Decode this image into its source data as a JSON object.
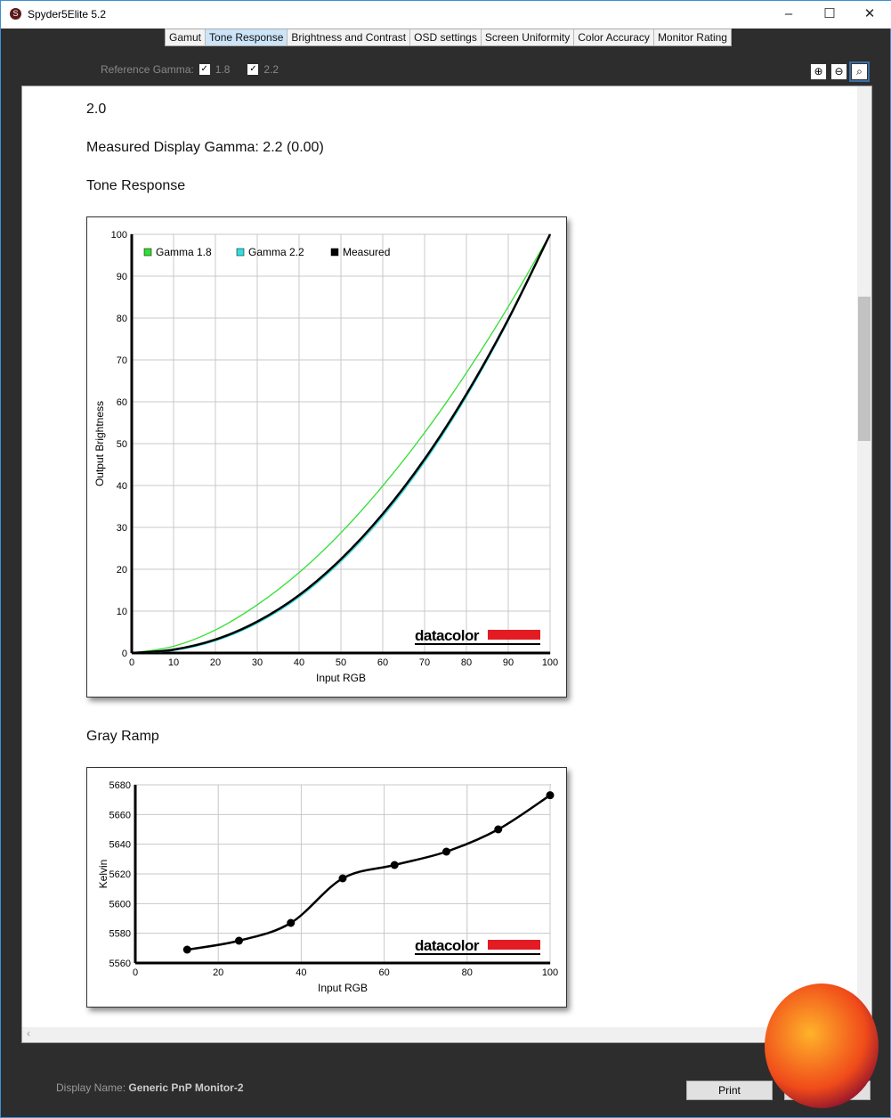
{
  "window": {
    "title": "Spyder5Elite 5.2",
    "minimize": "–",
    "maximize": "☐",
    "close": "✕"
  },
  "tabs": [
    {
      "label": "Gamut"
    },
    {
      "label": "Tone Response",
      "active": true
    },
    {
      "label": "Brightness and Contrast"
    },
    {
      "label": "OSD settings"
    },
    {
      "label": "Screen Uniformity"
    },
    {
      "label": "Color Accuracy"
    },
    {
      "label": "Monitor Rating"
    }
  ],
  "toolbar": {
    "ref_label": "Reference Gamma:",
    "g18": "1.8",
    "g22": "2.2",
    "g18_checked": true,
    "g22_checked": true,
    "zoom_in": "⊕",
    "zoom_out": "⊖",
    "zoom_fit": "🔍"
  },
  "content": {
    "target": "2.0",
    "measured": "Measured Display Gamma: 2.2 (0.00)",
    "tone_heading": "Tone Response",
    "gray_heading": "Gray Ramp"
  },
  "chart_data": [
    {
      "type": "line",
      "xlabel": "Input RGB",
      "ylabel": "Output Brightness",
      "xlim": [
        0,
        100
      ],
      "ylim": [
        0,
        100
      ],
      "xticks": [
        "0",
        "10",
        "20",
        "30",
        "40",
        "50",
        "60",
        "70",
        "80",
        "90",
        "100"
      ],
      "yticks": [
        "0",
        "10",
        "20",
        "30",
        "40",
        "50",
        "60",
        "70",
        "80",
        "90",
        "100"
      ],
      "grid": true,
      "legend": "top-left",
      "series": [
        {
          "name": "Gamma 1.8",
          "color": "#33dd33",
          "x": [
            0,
            10,
            20,
            30,
            40,
            50,
            60,
            70,
            80,
            90,
            100
          ],
          "y": [
            0,
            1.6,
            5.5,
            11.5,
            19.2,
            28.7,
            39.9,
            52.6,
            66.9,
            82.7,
            100
          ]
        },
        {
          "name": "Gamma 2.2",
          "color": "#33dddd",
          "x": [
            0,
            10,
            20,
            30,
            40,
            50,
            60,
            70,
            80,
            90,
            100
          ],
          "y": [
            0,
            0.6,
            2.9,
            7.1,
            13.3,
            21.8,
            32.5,
            45.6,
            61.2,
            79.3,
            100
          ]
        },
        {
          "name": "Measured",
          "color": "#000000",
          "x": [
            0,
            10,
            20,
            30,
            40,
            50,
            60,
            70,
            80,
            90,
            100
          ],
          "y": [
            0,
            0.8,
            3.2,
            7.5,
            13.8,
            22.4,
            33.2,
            46.3,
            61.8,
            79.7,
            100
          ]
        }
      ],
      "watermark": "datacolor"
    },
    {
      "type": "line",
      "xlabel": "Input RGB",
      "ylabel": "Kelvin",
      "xlim": [
        0,
        100
      ],
      "ylim": [
        5560,
        5680
      ],
      "xticks": [
        "0",
        "20",
        "40",
        "60",
        "80",
        "100"
      ],
      "yticks": [
        "5560",
        "5580",
        "5600",
        "5620",
        "5640",
        "5660",
        "5680"
      ],
      "grid": true,
      "series": [
        {
          "color": "#000000",
          "x": [
            12.5,
            25,
            37.5,
            50,
            62.5,
            75,
            87.5,
            100
          ],
          "y": [
            5569,
            5575,
            5587,
            5617,
            5626,
            5635,
            5650,
            5673
          ]
        }
      ],
      "watermark": "datacolor"
    }
  ],
  "footer": {
    "display_label": "Display Name:",
    "display_name": "Generic PnP Monitor-2",
    "print": "Print"
  },
  "colors": {
    "brand_red": "#e31b23",
    "active_tab": "#cce4f7"
  }
}
